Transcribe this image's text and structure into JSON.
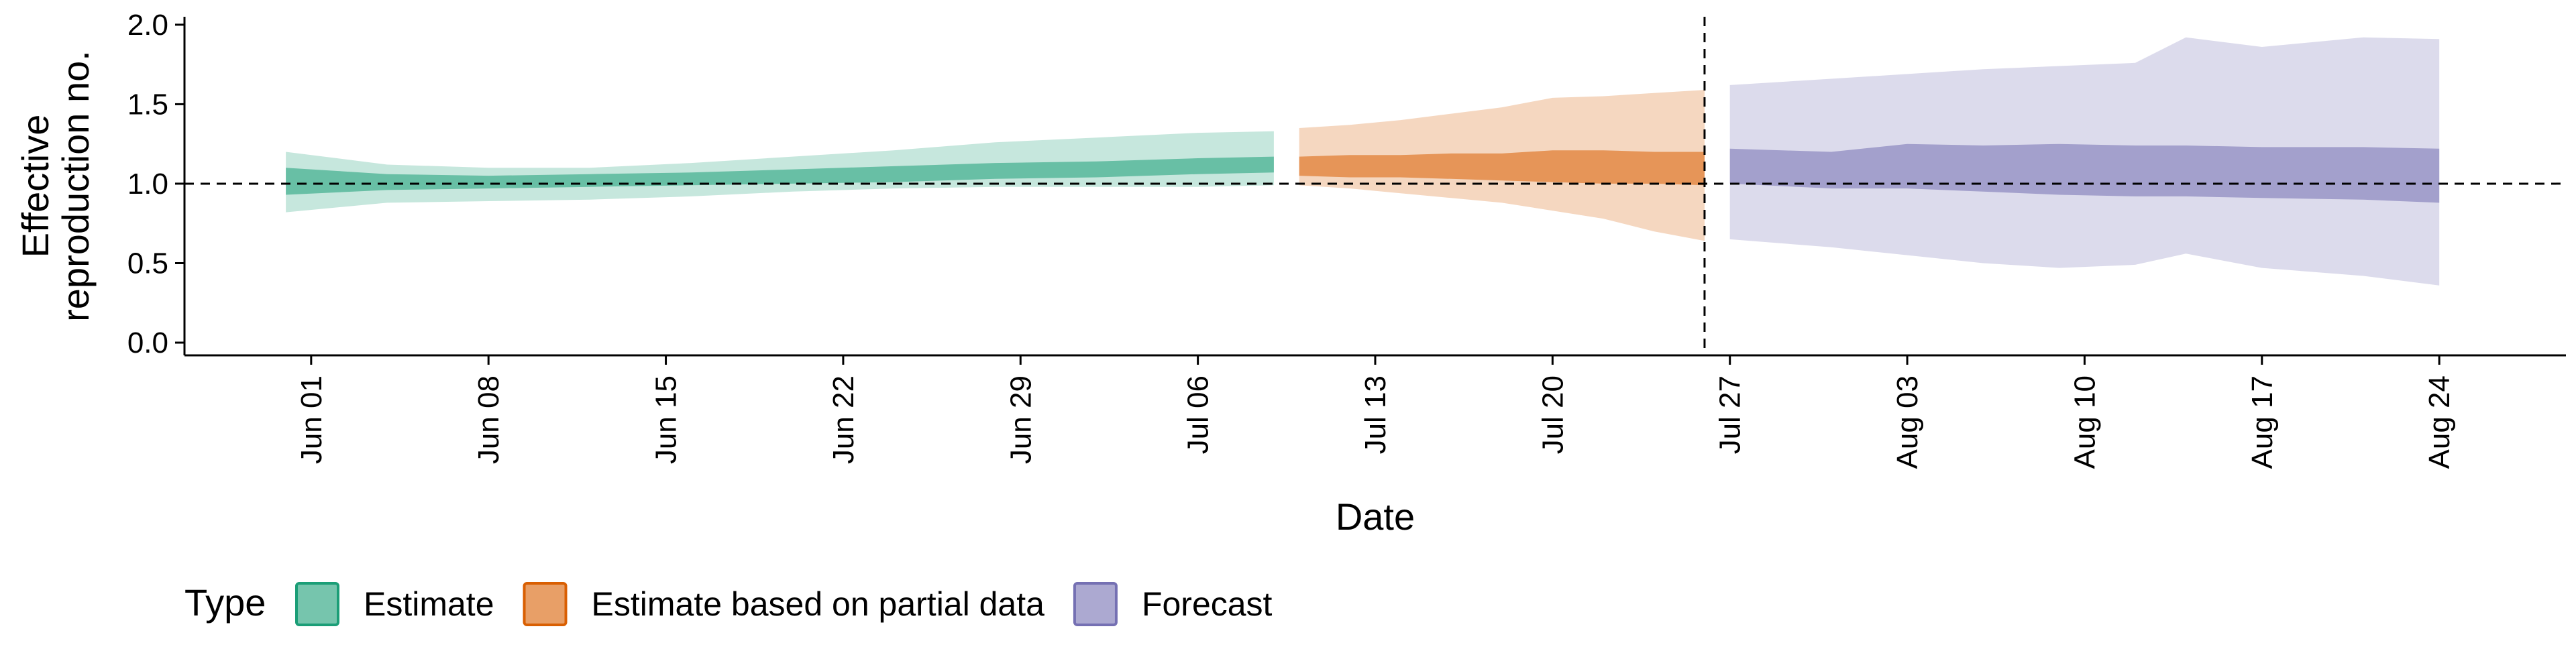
{
  "chart_data": {
    "type": "area",
    "title": "",
    "xlabel": "Date",
    "ylabel_lines": [
      "Effective",
      "reproduction no."
    ],
    "ylim": [
      -0.08,
      2.05
    ],
    "y_ticks": [
      0.0,
      0.5,
      1.0,
      1.5,
      2.0
    ],
    "y_tick_labels": [
      "0.0",
      "0.5",
      "1.0",
      "1.5",
      "2.0"
    ],
    "x_domain": [
      "2020-05-27",
      "2020-08-29"
    ],
    "x_ticks": [
      "2020-06-01",
      "2020-06-08",
      "2020-06-15",
      "2020-06-22",
      "2020-06-29",
      "2020-07-06",
      "2020-07-13",
      "2020-07-20",
      "2020-07-27",
      "2020-08-03",
      "2020-08-10",
      "2020-08-17",
      "2020-08-24"
    ],
    "x_tick_labels": [
      "Jun 01",
      "Jun 08",
      "Jun 15",
      "Jun 22",
      "Jun 29",
      "Jul 06",
      "Jul 13",
      "Jul 20",
      "Jul 27",
      "Aug 03",
      "Aug 10",
      "Aug 17",
      "Aug 24"
    ],
    "reference_hline": 1.0,
    "reference_vline": "2020-07-26",
    "legend": {
      "title": "Type",
      "position": "bottom"
    },
    "series": [
      {
        "name": "Estimate",
        "color": "#1b9e77",
        "dates": [
          "2020-05-31",
          "2020-06-04",
          "2020-06-08",
          "2020-06-12",
          "2020-06-16",
          "2020-06-20",
          "2020-06-24",
          "2020-06-28",
          "2020-07-02",
          "2020-07-06",
          "2020-07-09"
        ],
        "outer_lower": [
          0.82,
          0.88,
          0.89,
          0.9,
          0.92,
          0.95,
          0.97,
          0.98,
          0.98,
          0.98,
          0.99
        ],
        "outer_upper": [
          1.2,
          1.12,
          1.1,
          1.1,
          1.13,
          1.17,
          1.21,
          1.26,
          1.29,
          1.32,
          1.33
        ],
        "inner_lower": [
          0.93,
          0.96,
          0.97,
          0.98,
          0.99,
          1.0,
          1.01,
          1.03,
          1.04,
          1.06,
          1.07
        ],
        "inner_upper": [
          1.1,
          1.06,
          1.05,
          1.06,
          1.07,
          1.09,
          1.11,
          1.13,
          1.14,
          1.16,
          1.17
        ]
      },
      {
        "name": "Estimate based on partial data",
        "color": "#d95f02",
        "dates": [
          "2020-07-10",
          "2020-07-12",
          "2020-07-14",
          "2020-07-16",
          "2020-07-18",
          "2020-07-20",
          "2020-07-22",
          "2020-07-24",
          "2020-07-26"
        ],
        "outer_lower": [
          0.99,
          0.97,
          0.94,
          0.91,
          0.88,
          0.83,
          0.78,
          0.7,
          0.64
        ],
        "outer_upper": [
          1.35,
          1.37,
          1.4,
          1.44,
          1.48,
          1.54,
          1.55,
          1.57,
          1.59
        ],
        "inner_lower": [
          1.05,
          1.04,
          1.04,
          1.03,
          1.02,
          1.01,
          1.0,
          1.0,
          0.99
        ],
        "inner_upper": [
          1.17,
          1.18,
          1.18,
          1.19,
          1.19,
          1.21,
          1.21,
          1.2,
          1.2
        ]
      },
      {
        "name": "Forecast",
        "color": "#7570b3",
        "dates": [
          "2020-07-27",
          "2020-07-31",
          "2020-08-03",
          "2020-08-06",
          "2020-08-09",
          "2020-08-12",
          "2020-08-14",
          "2020-08-17",
          "2020-08-21",
          "2020-08-24"
        ],
        "outer_lower": [
          0.65,
          0.6,
          0.55,
          0.5,
          0.47,
          0.49,
          0.56,
          0.47,
          0.42,
          0.36
        ],
        "outer_upper": [
          1.62,
          1.66,
          1.69,
          1.72,
          1.74,
          1.76,
          1.92,
          1.86,
          1.92,
          1.91
        ],
        "inner_lower": [
          1.0,
          0.97,
          0.97,
          0.95,
          0.93,
          0.92,
          0.92,
          0.91,
          0.9,
          0.88
        ],
        "inner_upper": [
          1.22,
          1.2,
          1.25,
          1.24,
          1.25,
          1.24,
          1.24,
          1.23,
          1.23,
          1.22
        ]
      }
    ]
  }
}
